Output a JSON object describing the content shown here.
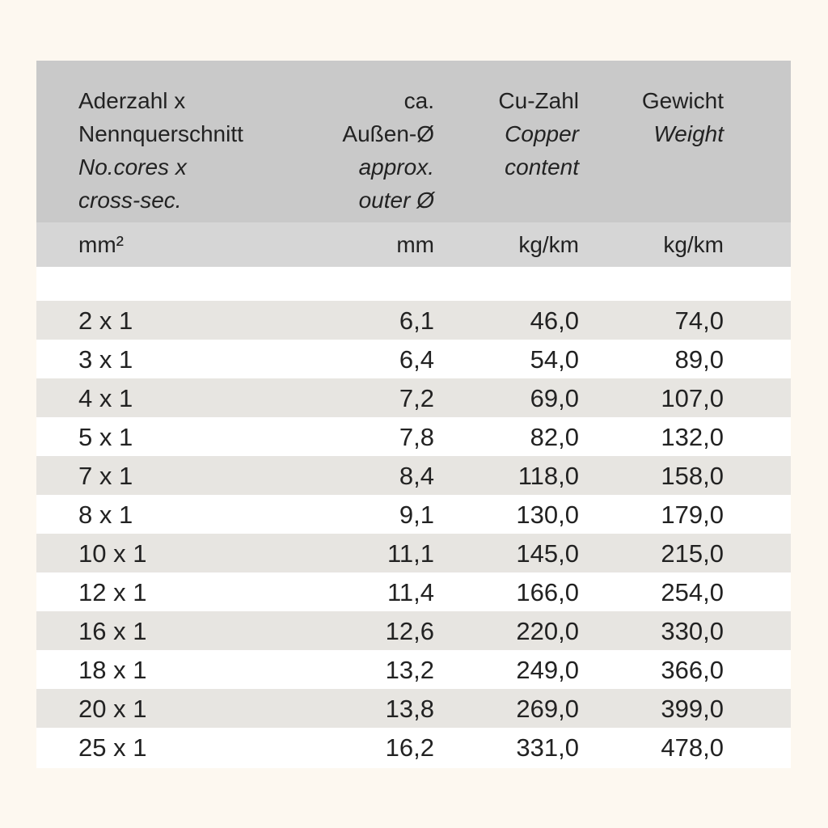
{
  "header": {
    "columns": [
      {
        "de": [
          "Aderzahl x",
          "Nennquerschnitt"
        ],
        "en": [
          "No.cores x",
          "cross-sec."
        ]
      },
      {
        "de": [
          "ca.",
          "Außen-Ø"
        ],
        "en": [
          "approx.",
          "outer Ø"
        ]
      },
      {
        "de": [
          "Cu-Zahl"
        ],
        "en": [
          "Copper",
          "content"
        ]
      },
      {
        "de": [
          "Gewicht"
        ],
        "en": [
          "Weight"
        ]
      }
    ],
    "units": [
      "mm²",
      "mm",
      "kg/km",
      "kg/km"
    ]
  },
  "rows": [
    [
      "2 x 1",
      "6,1",
      "46,0",
      "74,0"
    ],
    [
      "3 x 1",
      "6,4",
      "54,0",
      "89,0"
    ],
    [
      "4 x 1",
      "7,2",
      "69,0",
      "107,0"
    ],
    [
      "5 x 1",
      "7,8",
      "82,0",
      "132,0"
    ],
    [
      "7 x 1",
      "8,4",
      "118,0",
      "158,0"
    ],
    [
      "8 x 1",
      "9,1",
      "130,0",
      "179,0"
    ],
    [
      "10 x 1",
      "11,1",
      "145,0",
      "215,0"
    ],
    [
      "12 x 1",
      "11,4",
      "166,0",
      "254,0"
    ],
    [
      "16 x 1",
      "12,6",
      "220,0",
      "330,0"
    ],
    [
      "18 x 1",
      "13,2",
      "249,0",
      "366,0"
    ],
    [
      "20 x 1",
      "13,8",
      "269,0",
      "399,0"
    ],
    [
      "25 x 1",
      "16,2",
      "331,0",
      "478,0"
    ]
  ]
}
